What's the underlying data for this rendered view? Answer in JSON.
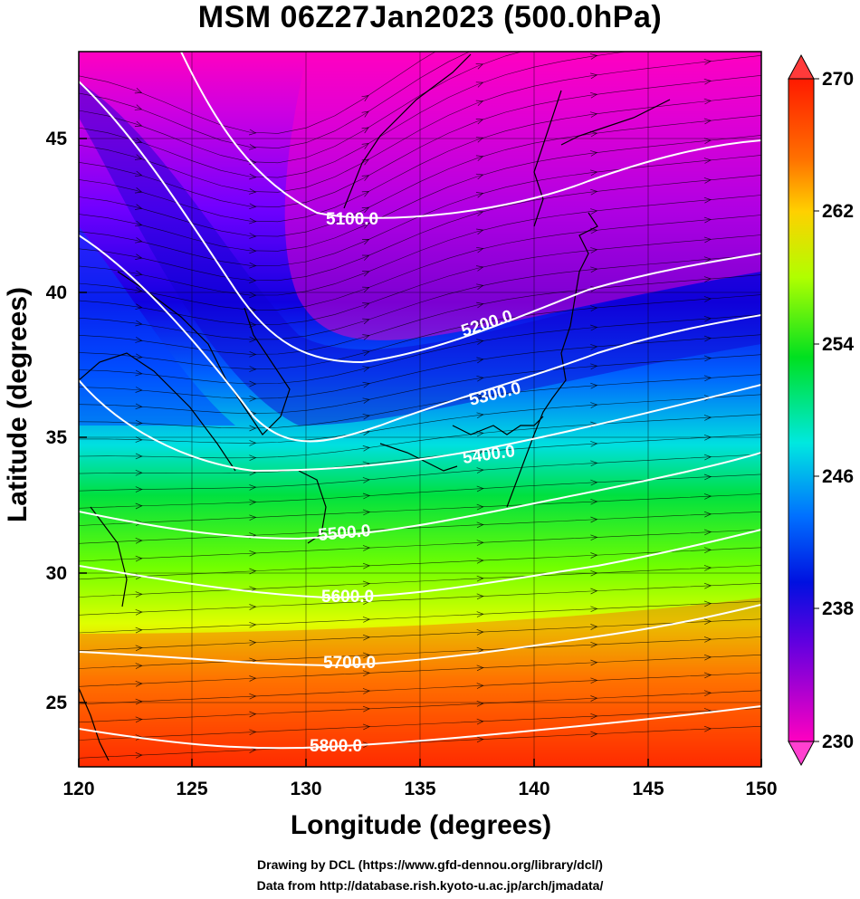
{
  "title": "MSM 06Z27Jan2023 (500.0hPa)",
  "xlabel": "Longitude (degrees)",
  "ylabel": "Latitude  (degrees)",
  "credits": [
    "Drawing by DCL (https://www.gfd-dennou.org/library/dcl/)",
    "Data from http://database.rish.kyoto-u.ac.jp/arch/jmadata/"
  ],
  "map": {
    "lon_range": [
      120,
      150
    ],
    "lat_range": [
      22.5,
      47.5
    ],
    "x_ticks": [
      "120",
      "125",
      "130",
      "135",
      "140",
      "145",
      "150"
    ],
    "y_ticks": [
      "25",
      "30",
      "35",
      "40",
      "45"
    ],
    "grid": true,
    "field": "temperature (K) shaded, geopotential height contours, streamlines",
    "colors": {
      "cold": "#ff00cc",
      "purple": "#7a00ff",
      "blue": "#0010ff",
      "cyan": "#00e8ff",
      "green": "#00e030",
      "yellow": "#e8ff00",
      "orange": "#ff8c00",
      "red": "#ff2000"
    }
  },
  "colorbar": {
    "ticks": [
      "270",
      "262",
      "254",
      "246",
      "238",
      "230"
    ],
    "min": 230,
    "max": 270
  },
  "contours": [
    {
      "label": "5100.0"
    },
    {
      "label": "5200.0"
    },
    {
      "label": "5300.0"
    },
    {
      "label": "5400.0"
    },
    {
      "label": "5500.0"
    },
    {
      "label": "5600.0"
    },
    {
      "label": "5700.0"
    },
    {
      "label": "5800.0"
    }
  ]
}
